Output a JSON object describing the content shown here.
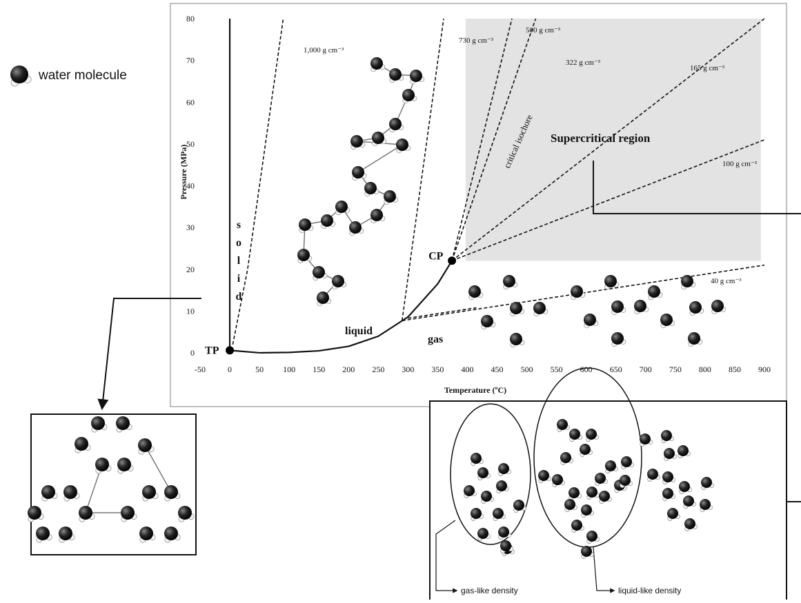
{
  "chart_data": {
    "type": "line",
    "x_label": "Temperature (ºC)",
    "y_label": "Pressure (MPa)",
    "xlim": [
      -50,
      900
    ],
    "ylim": [
      0,
      80
    ],
    "xticks": [
      -50,
      0,
      50,
      100,
      150,
      200,
      250,
      300,
      350,
      400,
      450,
      500,
      550,
      600,
      650,
      700,
      750,
      800,
      850,
      900
    ],
    "yticks": [
      0,
      10,
      20,
      30,
      40,
      50,
      60,
      70,
      80
    ],
    "grid": false,
    "series": [
      {
        "color": "#111111",
        "dash": false,
        "x": [
          0,
          0
        ],
        "values": [
          0.6,
          80
        ]
      },
      {
        "color": "#111111",
        "dash": true,
        "label": "1,000 g cm⁻³",
        "x": [
          5,
          30,
          60,
          90
        ],
        "values": [
          2,
          20,
          50,
          80
        ]
      },
      {
        "color": "#111111",
        "dash": false,
        "x": [
          0.01,
          50,
          100,
          150,
          200,
          250,
          300,
          350,
          374
        ],
        "values": [
          0.6,
          0.01,
          0.1,
          0.48,
          1.55,
          3.98,
          8.6,
          16.5,
          22.06
        ]
      },
      {
        "color": "#111111",
        "dash": true,
        "label": "730 g cm⁻³",
        "x": [
          290,
          360
        ],
        "values": [
          7.7,
          80
        ]
      },
      {
        "color": "#111111",
        "dash": true,
        "label": "500 g cm⁻³",
        "x": [
          374,
          475
        ],
        "values": [
          22.06,
          80
        ]
      },
      {
        "color": "#111111",
        "dash": true,
        "label": "322 g cm⁻³",
        "x": [
          374,
          515
        ],
        "values": [
          22.06,
          80
        ]
      },
      {
        "color": "#111111",
        "dash": true,
        "label": "165 g cm⁻³",
        "x": [
          374,
          900
        ],
        "values": [
          22.06,
          80
        ]
      },
      {
        "color": "#111111",
        "dash": true,
        "label": "100 g cm⁻³",
        "x": [
          374,
          900
        ],
        "values": [
          22.06,
          51
        ]
      },
      {
        "color": "#111111",
        "dash": true,
        "label": "40 g cm⁻³",
        "x": [
          290,
          900
        ],
        "values": [
          7.7,
          21
        ]
      },
      {
        "color": "#111111",
        "dash": true,
        "x": [
          300,
          415
        ],
        "values": [
          8.3,
          10.8
        ]
      }
    ],
    "points": [
      {
        "label": "TP",
        "x": 0.01,
        "y": 0.6
      },
      {
        "label": "CP",
        "x": 374,
        "y": 22.06
      }
    ],
    "region": {
      "label": "Supercritical region",
      "color": "#e3e3e3",
      "xlim": [
        397,
        894
      ],
      "ylim": [
        22,
        80
      ]
    },
    "phase_labels": [
      "solid",
      "liquid",
      "gas"
    ],
    "isochore_note": "critical isochore"
  },
  "legend": {
    "text": "water molecule"
  },
  "density_labels": [
    "gas-like density",
    "liquid-like density"
  ]
}
